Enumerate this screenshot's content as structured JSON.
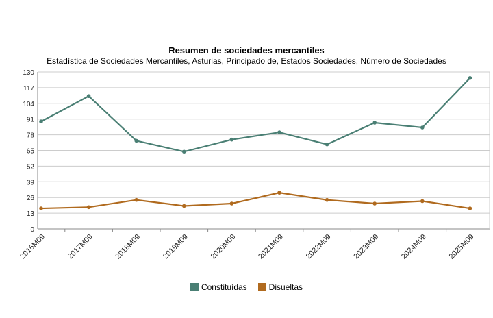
{
  "chart_data": {
    "type": "line",
    "title": "Resumen de sociedades mercantiles",
    "subtitle": "Estadística de Sociedades Mercantiles, Asturias, Principado de, Estados Sociedades, Número de Sociedades",
    "categories": [
      "2016M09",
      "2017M09",
      "2018M09",
      "2019M09",
      "2020M09",
      "2021M09",
      "2022M09",
      "2023M09",
      "2024M09",
      "2025M09"
    ],
    "series": [
      {
        "name": "Constituídas",
        "color": "#4a7f74",
        "values": [
          89,
          110,
          73,
          64,
          74,
          80,
          70,
          88,
          84,
          125
        ]
      },
      {
        "name": "Disueltas",
        "color": "#b06a1e",
        "values": [
          17,
          18,
          24,
          19,
          21,
          30,
          24,
          21,
          23,
          17
        ]
      }
    ],
    "yticks": [
      0,
      13,
      26,
      39,
      52,
      65,
      78,
      91,
      104,
      117,
      130
    ],
    "ylim": [
      0,
      130
    ],
    "grid": true,
    "legend_position": "bottom"
  }
}
